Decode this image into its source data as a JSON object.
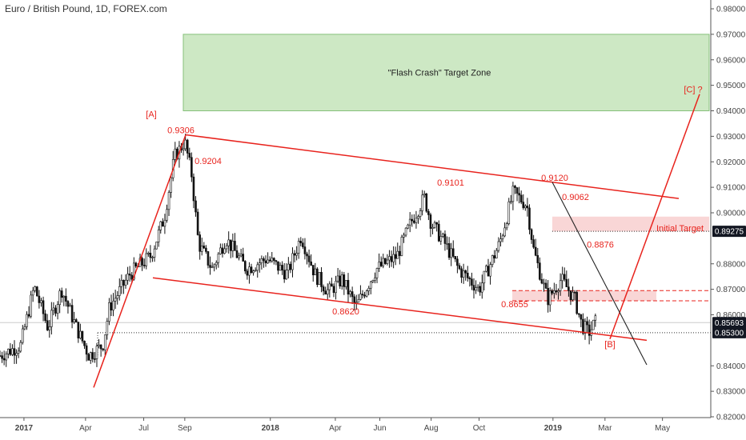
{
  "title": "Euro / British Pound, 1D, FOREX.com",
  "colors": {
    "accent": "#e8231d",
    "zone_fill": "#cde8c4",
    "zone_stroke": "#86c07a",
    "pink_fill": "#f9d6d6",
    "candle": "#111111",
    "downtrend": "#222222"
  },
  "chart_data": {
    "type": "candlestick",
    "ylim": [
      0.82,
      0.98
    ],
    "y_ticks": [
      "0.98000",
      "0.97000",
      "0.96000",
      "0.95000",
      "0.94000",
      "0.93000",
      "0.92000",
      "0.91000",
      "0.90000",
      "0.88000",
      "0.87000",
      "0.86000",
      "0.84000",
      "0.83000",
      "0.82000"
    ],
    "x_ticks": [
      "2017",
      "Apr",
      "Jul",
      "Sep",
      "2018",
      "Apr",
      "Jun",
      "Aug",
      "Oct",
      "2019",
      "Mar",
      "May"
    ],
    "price_tags": [
      {
        "label": "0.89275",
        "value": 0.89275
      },
      {
        "label": "0.85693",
        "value": 0.85693
      },
      {
        "label": "0.85300",
        "value": 0.853
      }
    ],
    "annotations": [
      {
        "text": "[A]",
        "value": 0.9356
      },
      {
        "text": "0.9306",
        "value": 0.9306
      },
      {
        "text": "0.9204",
        "value": 0.9204
      },
      {
        "text": "0.9101",
        "value": 0.9101
      },
      {
        "text": "0.9120",
        "value": 0.912
      },
      {
        "text": "0.9062",
        "value": 0.9062
      },
      {
        "text": "0.8876",
        "value": 0.8876
      },
      {
        "text": "0.8655",
        "value": 0.8655
      },
      {
        "text": "0.8620",
        "value": 0.862
      },
      {
        "text": "[B]",
        "value": 0.8485
      },
      {
        "text": "[C] ?",
        "value": 0.9485
      }
    ],
    "target_zone": {
      "label": "\"Flash Crash\" Target Zone",
      "from": 0.94,
      "to": 0.97
    },
    "initial_target": {
      "label": "Initial Target",
      "from": 0.8927,
      "to": 0.8985
    },
    "resistance_band": {
      "from": 0.8655,
      "to": 0.8695
    },
    "price_path": [
      [
        0.0,
        0.844
      ],
      [
        0.03,
        0.848
      ],
      [
        0.05,
        0.871
      ],
      [
        0.07,
        0.855
      ],
      [
        0.09,
        0.87
      ],
      [
        0.11,
        0.856
      ],
      [
        0.13,
        0.844
      ],
      [
        0.15,
        0.848
      ],
      [
        0.16,
        0.863
      ],
      [
        0.19,
        0.876
      ],
      [
        0.22,
        0.883
      ],
      [
        0.24,
        0.898
      ],
      [
        0.255,
        0.922
      ],
      [
        0.27,
        0.928
      ],
      [
        0.28,
        0.915
      ],
      [
        0.29,
        0.888
      ],
      [
        0.31,
        0.878
      ],
      [
        0.33,
        0.89
      ],
      [
        0.36,
        0.878
      ],
      [
        0.39,
        0.882
      ],
      [
        0.42,
        0.876
      ],
      [
        0.44,
        0.891
      ],
      [
        0.46,
        0.876
      ],
      [
        0.48,
        0.869
      ],
      [
        0.5,
        0.874
      ],
      [
        0.52,
        0.863
      ],
      [
        0.55,
        0.878
      ],
      [
        0.58,
        0.883
      ],
      [
        0.6,
        0.896
      ],
      [
        0.62,
        0.906
      ],
      [
        0.63,
        0.896
      ],
      [
        0.65,
        0.888
      ],
      [
        0.67,
        0.878
      ],
      [
        0.7,
        0.87
      ],
      [
        0.73,
        0.888
      ],
      [
        0.75,
        0.908
      ],
      [
        0.77,
        0.903
      ],
      [
        0.78,
        0.885
      ],
      [
        0.8,
        0.866
      ],
      [
        0.82,
        0.874
      ],
      [
        0.84,
        0.866
      ],
      [
        0.85,
        0.856
      ],
      [
        0.86,
        0.853
      ],
      [
        0.87,
        0.857
      ]
    ],
    "x_range": [
      0.0,
      1.0
    ]
  }
}
